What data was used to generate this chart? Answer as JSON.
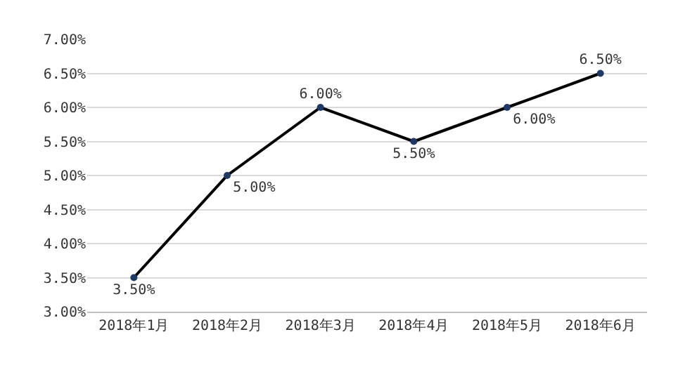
{
  "chart_data": {
    "type": "line",
    "categories": [
      "2018年1月",
      "2018年2月",
      "2018年3月",
      "2018年4月",
      "2018年5月",
      "2018年6月"
    ],
    "series": [
      {
        "color": "#000000",
        "values": [
          3.5,
          5,
          6,
          5.5,
          6,
          6.5
        ],
        "value_labels": [
          "3.50%",
          "5.00%",
          "6.00%",
          "5.50%",
          "6.00%",
          "6.50%"
        ]
      }
    ],
    "ylim": [
      3,
      7
    ],
    "yticks": [
      {
        "value": 3,
        "label": "3.00%"
      },
      {
        "value": 3.5,
        "label": "3.50%"
      },
      {
        "value": 4,
        "label": "4.00%"
      },
      {
        "value": 4.5,
        "label": "4.50%"
      },
      {
        "value": 5,
        "label": "5.00%"
      },
      {
        "value": 5.5,
        "label": "5.50%"
      },
      {
        "value": 6,
        "label": "6.00%"
      },
      {
        "value": 6.5,
        "label": "6.50%"
      },
      {
        "value": 7,
        "label": "7.00%"
      }
    ],
    "grid": "y",
    "marker": "circle",
    "line_style": "solid"
  }
}
